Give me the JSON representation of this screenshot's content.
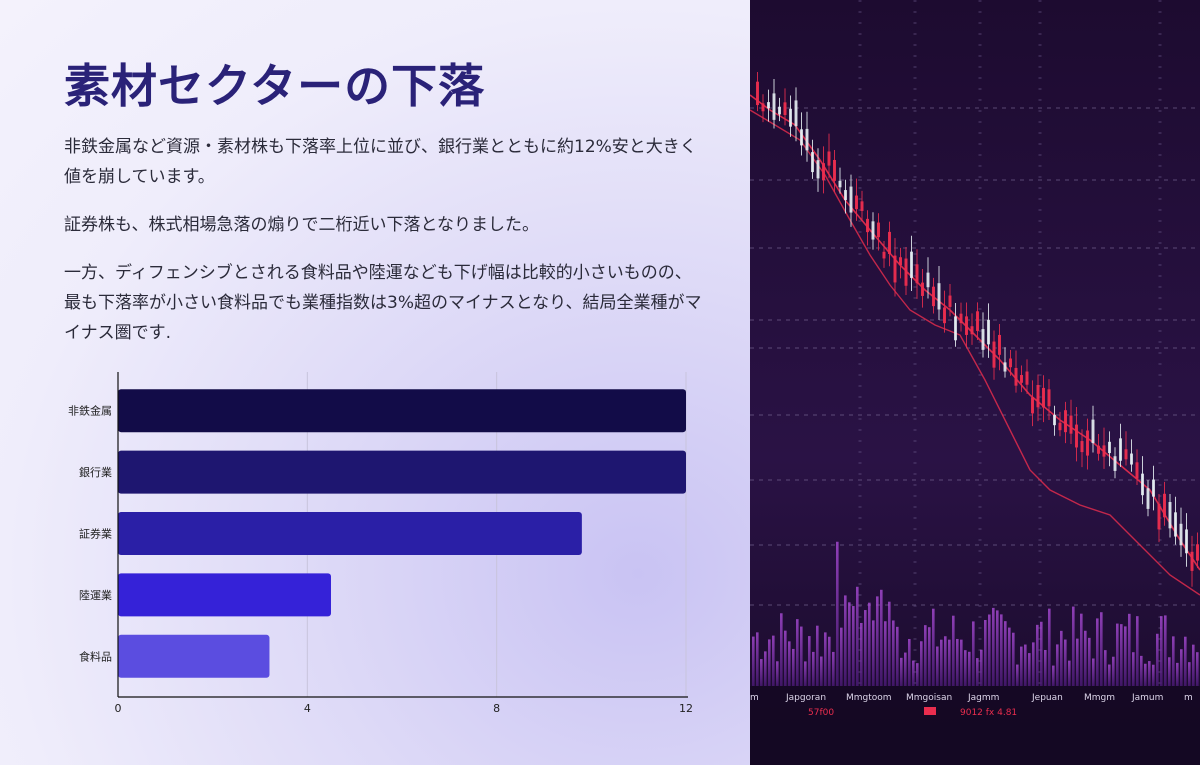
{
  "slide": {
    "title": "素材セクターの下落",
    "paragraphs": [
      "非鉄金属など資源・素材株も下落率上位に並び、銀行業とともに約12%安と大きく値を崩しています。",
      "証券株も、株式相場急落の煽りで二桁近い下落となりました。",
      "一方、ディフェンシブとされる食料品や陸運なども下げ幅は比較的小さいものの、最も下落率が小さい食料品でも業種指数は3%超のマイナスとなり、結局全業種がマイナス圏です."
    ]
  },
  "chart_data": {
    "type": "bar",
    "orientation": "horizontal",
    "categories": [
      "非鉄金属",
      "銀行業",
      "証券業",
      "陸運業",
      "食料品"
    ],
    "values": [
      12,
      12,
      9.8,
      4.5,
      3.2
    ],
    "xlim": [
      0,
      12
    ],
    "xticks": [
      "0",
      "4",
      "8",
      "12"
    ],
    "grid": true,
    "colors": [
      "#120c48",
      "#1e1670",
      "#2a1fa6",
      "#3522d8",
      "#5b4de0"
    ]
  },
  "image": {
    "axis_labels": [
      "m",
      "Japgoran",
      "Mmgtoom",
      "Mmgoisan",
      "Jagmm",
      "Jepuan",
      "Mmgm",
      "Jamum",
      "m"
    ],
    "readouts": [
      "57f00",
      "9012 fx 4.81"
    ],
    "colors": {
      "background": "#1f0d33",
      "candle_up": "#e6f0f3",
      "candle_down": "#ea2d4e",
      "ma_line": "#ea2d4e",
      "volume": "#8e3ec6"
    }
  }
}
